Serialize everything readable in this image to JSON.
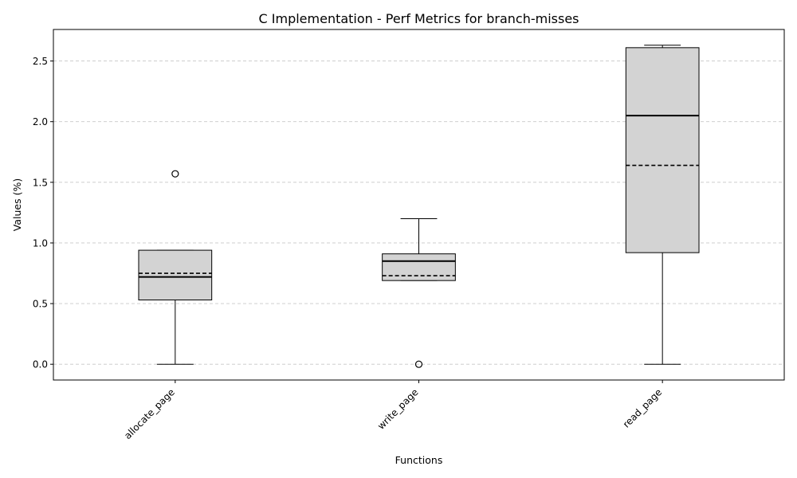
{
  "chart_data": {
    "type": "box",
    "title": "C Implementation - Perf Metrics for branch-misses",
    "xlabel": "Functions",
    "ylabel": "Values (%)",
    "categories": [
      "allocate_page",
      "write_page",
      "read_page"
    ],
    "ylim": [
      -0.13,
      2.76
    ],
    "yticks": [
      0.0,
      0.5,
      1.0,
      1.5,
      2.0,
      2.5
    ],
    "ytick_labels": [
      "0.0",
      "0.5",
      "1.0",
      "1.5",
      "2.0",
      "2.5"
    ],
    "grid": "y, dashed",
    "boxes": [
      {
        "category": "allocate_page",
        "whisker_low": 0.0,
        "q1": 0.53,
        "median": 0.72,
        "mean": 0.75,
        "q3": 0.94,
        "whisker_high": 0.94,
        "outliers": [
          1.57
        ]
      },
      {
        "category": "write_page",
        "whisker_low": 0.69,
        "q1": 0.69,
        "median": 0.85,
        "mean": 0.73,
        "q3": 0.91,
        "whisker_high": 1.2,
        "outliers": [
          0.0
        ]
      },
      {
        "category": "read_page",
        "whisker_low": 0.0,
        "q1": 0.92,
        "median": 2.05,
        "mean": 1.64,
        "q3": 2.61,
        "whisker_high": 2.63,
        "outliers": []
      }
    ],
    "colors": {
      "box_fill": "#d3d3d3",
      "line": "#000000",
      "grid": "#c8c8c8"
    }
  }
}
